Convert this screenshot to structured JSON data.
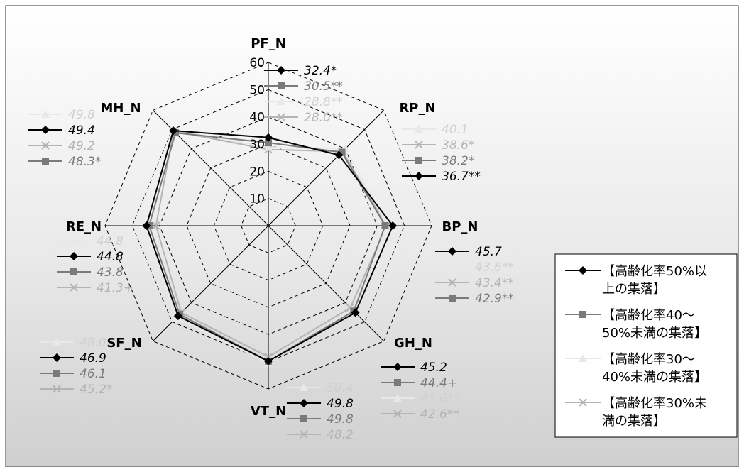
{
  "chart_data": {
    "type": "radar",
    "axes": [
      "PF_N",
      "RP_N",
      "BP_N",
      "GH_N",
      "VT_N",
      "SF_N",
      "RE_N",
      "MH_N"
    ],
    "ticks": [
      "10",
      "20",
      "30",
      "40",
      "50",
      "60"
    ],
    "rlim": [
      0,
      60
    ],
    "grid": true,
    "legend_position": "right",
    "series": [
      {
        "name": "【高齢化率50%以上の集落】",
        "color": "#000000",
        "marker": "diamond",
        "values": [
          32.4,
          36.7,
          45.7,
          45.2,
          49.8,
          46.9,
          44.8,
          49.4
        ]
      },
      {
        "name": "【高齢化率40～50%未満の集落】",
        "color": "#7a7a7a",
        "marker": "square",
        "values": [
          30.5,
          38.2,
          42.9,
          44.4,
          49.8,
          46.1,
          43.8,
          48.3
        ]
      },
      {
        "name": "【高齢化率30～40%未満の集落】",
        "color": "#e8e8e8",
        "marker": "triangle",
        "values": [
          28.8,
          40.1,
          43.6,
          43.6,
          50.4,
          48.0,
          44.8,
          49.8
        ]
      },
      {
        "name": "【高齢化率30%未満の集落】",
        "color": "#b4b4b4",
        "marker": "x",
        "values": [
          28.0,
          38.6,
          43.4,
          42.6,
          48.2,
          45.2,
          41.3,
          49.2
        ]
      }
    ],
    "value_labels": [
      [
        {
          "s": 0,
          "t": "32.4*"
        },
        {
          "s": 1,
          "t": "30.5**"
        },
        {
          "s": 2,
          "t": "28.8**"
        },
        {
          "s": 3,
          "t": "28.0**"
        }
      ],
      [
        {
          "s": 2,
          "t": "40.1"
        },
        {
          "s": 3,
          "t": "38.6*"
        },
        {
          "s": 1,
          "t": "38.2*"
        },
        {
          "s": 0,
          "t": "36.7**"
        }
      ],
      [
        {
          "s": 0,
          "t": "45.7"
        },
        {
          "s": 2,
          "t": "43.6**"
        },
        {
          "s": 3,
          "t": "43.4**"
        },
        {
          "s": 1,
          "t": "42.9**"
        }
      ],
      [
        {
          "s": 0,
          "t": "45.2"
        },
        {
          "s": 1,
          "t": "44.4+"
        },
        {
          "s": 2,
          "t": "43.6**"
        },
        {
          "s": 3,
          "t": "42.6**"
        }
      ],
      [
        {
          "s": 2,
          "t": "50.4"
        },
        {
          "s": 0,
          "t": "49.8"
        },
        {
          "s": 1,
          "t": "49.8"
        },
        {
          "s": 3,
          "t": "48.2"
        }
      ],
      [
        {
          "s": 2,
          "t": "48.0"
        },
        {
          "s": 0,
          "t": "46.9"
        },
        {
          "s": 1,
          "t": "46.1"
        },
        {
          "s": 3,
          "t": "45.2*"
        }
      ],
      [
        {
          "s": 2,
          "t": "44.8"
        },
        {
          "s": 0,
          "t": "44.8"
        },
        {
          "s": 1,
          "t": "43.8"
        },
        {
          "s": 3,
          "t": "41.3+"
        }
      ],
      [
        {
          "s": 2,
          "t": "49.8"
        },
        {
          "s": 0,
          "t": "49.4"
        },
        {
          "s": 3,
          "t": "49.2"
        },
        {
          "s": 1,
          "t": "48.3*"
        }
      ]
    ],
    "legend": [
      [
        "【高齢化率50%以",
        "上の集落】"
      ],
      [
        "【高齢化率40～",
        "50%未満の集落】"
      ],
      [
        "【高齢化率30～",
        "40%未満の集落】"
      ],
      [
        "【高齢化率30%未",
        "満の集落】"
      ]
    ]
  }
}
